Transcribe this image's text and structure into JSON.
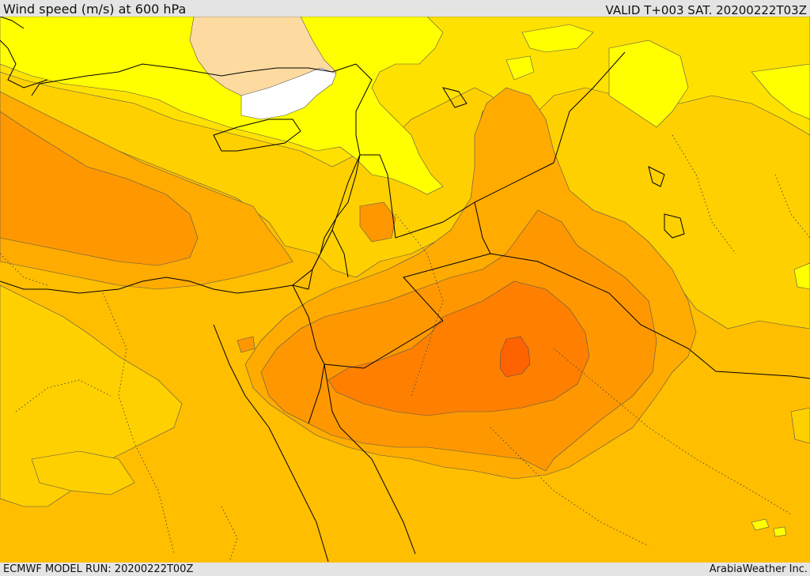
{
  "header": {
    "title": "Wind speed (m/s) at 600 hPa",
    "valid_label": "VALID T+003 SAT. 20200222T03Z"
  },
  "footer": {
    "model_run": "ECMWF MODEL RUN: 20200222T00Z",
    "credit": "ArabiaWeather Inc."
  },
  "map": {
    "colors": {
      "lightest": "#ffffff",
      "peach": "#fddba0",
      "yellow": "#ffff00",
      "yellow_gold": "#ffe100",
      "gold": "#ffd000",
      "amber": "#ffbe00",
      "orange_light": "#ffab00",
      "orange": "#ff9800",
      "orange_dark": "#ff8000",
      "red_orange": "#ff6200",
      "coast": "#000000"
    }
  }
}
